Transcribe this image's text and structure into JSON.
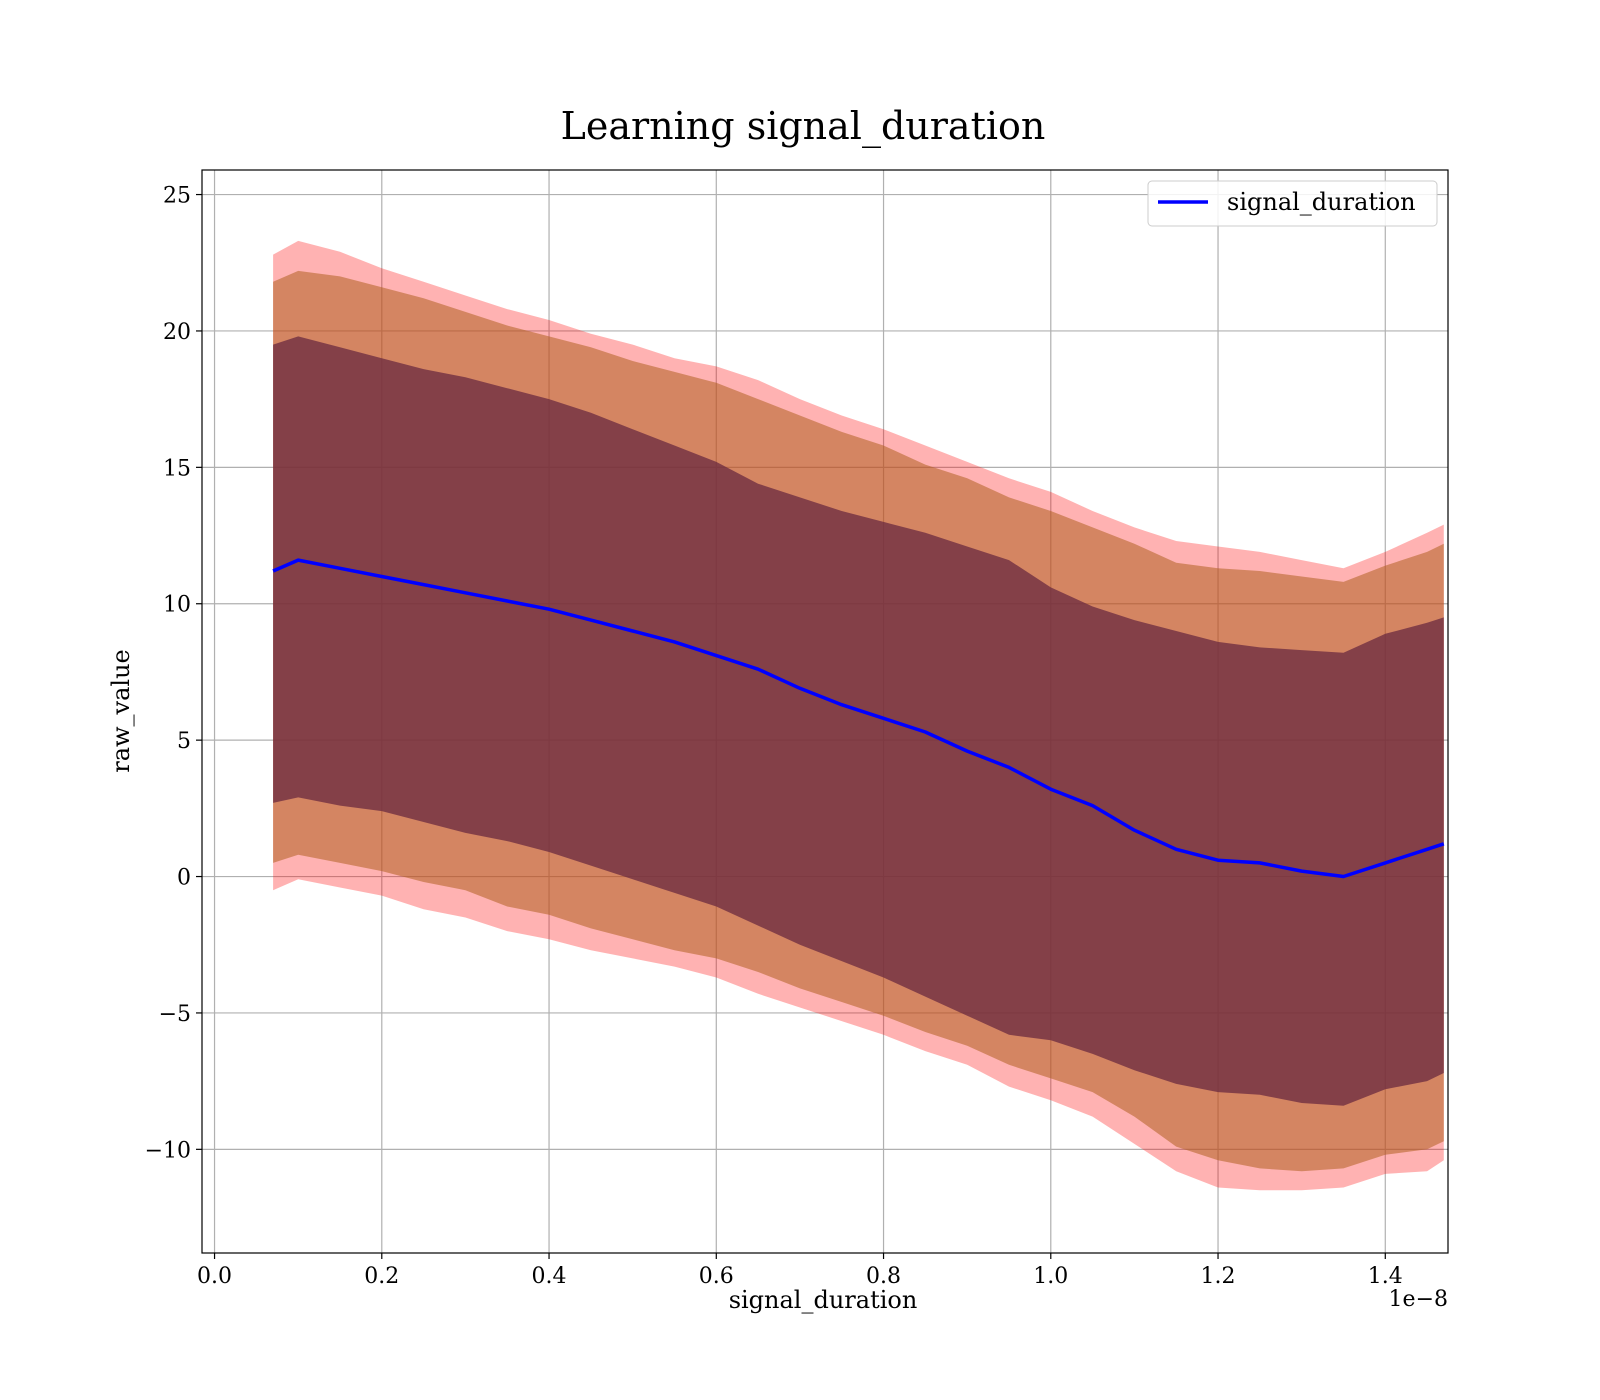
{
  "chart_data": {
    "type": "line",
    "title": "Learning signal_duration",
    "xlabel": "signal_duration",
    "ylabel": "raw_value",
    "x_offset_label": "1e−8",
    "x_scale_exponent": -8,
    "xlim": [
      -0.015,
      1.475
    ],
    "ylim": [
      -13.8,
      25.9
    ],
    "x_ticks": [
      0.0,
      0.2,
      0.4,
      0.6,
      0.8,
      1.0,
      1.2,
      1.4
    ],
    "x_tick_labels": [
      "0.0",
      "0.2",
      "0.4",
      "0.6",
      "0.8",
      "1.0",
      "1.2",
      "1.4"
    ],
    "y_ticks": [
      25,
      20,
      15,
      10,
      5,
      0,
      -5,
      -10
    ],
    "y_tick_labels": [
      "25",
      "20",
      "15",
      "10",
      "5",
      "0",
      "−5",
      "−10"
    ],
    "grid": true,
    "legend_position": "top-right",
    "colors": {
      "line": "#0000ff",
      "band_outer": "#ff0000",
      "band_middle": "#b06020",
      "band_inner": "#6a2a40",
      "grid": "#b0b0b0"
    },
    "x": [
      0.07,
      0.1,
      0.15,
      0.2,
      0.25,
      0.3,
      0.35,
      0.4,
      0.45,
      0.5,
      0.55,
      0.6,
      0.65,
      0.7,
      0.75,
      0.8,
      0.85,
      0.9,
      0.95,
      1.0,
      1.05,
      1.1,
      1.15,
      1.2,
      1.25,
      1.3,
      1.35,
      1.4,
      1.45,
      1.47
    ],
    "series": [
      {
        "name": "signal_duration",
        "values": [
          11.2,
          11.6,
          11.3,
          11.0,
          10.7,
          10.4,
          10.1,
          9.8,
          9.4,
          9.0,
          8.6,
          8.1,
          7.6,
          6.9,
          6.3,
          5.8,
          5.3,
          4.6,
          4.0,
          3.2,
          2.6,
          1.7,
          1.0,
          0.6,
          0.5,
          0.2,
          0.0,
          0.5,
          1.0,
          1.2
        ]
      }
    ],
    "bands": [
      {
        "level": "outer",
        "upper": [
          22.8,
          23.3,
          22.9,
          22.3,
          21.8,
          21.3,
          20.8,
          20.4,
          19.9,
          19.5,
          19.0,
          18.7,
          18.2,
          17.5,
          16.9,
          16.4,
          15.8,
          15.2,
          14.6,
          14.1,
          13.4,
          12.8,
          12.3,
          12.1,
          11.9,
          11.6,
          11.3,
          11.9,
          12.6,
          12.9
        ],
        "lower": [
          -0.5,
          -0.1,
          -0.4,
          -0.7,
          -1.2,
          -1.5,
          -2.0,
          -2.3,
          -2.7,
          -3.0,
          -3.3,
          -3.7,
          -4.3,
          -4.8,
          -5.3,
          -5.8,
          -6.4,
          -6.9,
          -7.7,
          -8.2,
          -8.8,
          -9.8,
          -10.8,
          -11.4,
          -11.5,
          -11.5,
          -11.4,
          -10.9,
          -10.8,
          -10.4
        ]
      },
      {
        "level": "middle",
        "upper": [
          21.8,
          22.2,
          22.0,
          21.6,
          21.2,
          20.7,
          20.2,
          19.8,
          19.4,
          18.9,
          18.5,
          18.1,
          17.5,
          16.9,
          16.3,
          15.8,
          15.1,
          14.6,
          13.9,
          13.4,
          12.8,
          12.2,
          11.5,
          11.3,
          11.2,
          11.0,
          10.8,
          11.4,
          11.9,
          12.2
        ],
        "lower": [
          0.5,
          0.8,
          0.5,
          0.2,
          -0.2,
          -0.5,
          -1.1,
          -1.4,
          -1.9,
          -2.3,
          -2.7,
          -3.0,
          -3.5,
          -4.1,
          -4.6,
          -5.1,
          -5.7,
          -6.2,
          -6.9,
          -7.4,
          -7.9,
          -8.8,
          -9.9,
          -10.4,
          -10.7,
          -10.8,
          -10.7,
          -10.2,
          -10.0,
          -9.7
        ]
      },
      {
        "level": "inner",
        "upper": [
          19.5,
          19.8,
          19.4,
          19.0,
          18.6,
          18.3,
          17.9,
          17.5,
          17.0,
          16.4,
          15.8,
          15.2,
          14.4,
          13.9,
          13.4,
          13.0,
          12.6,
          12.1,
          11.6,
          10.6,
          9.9,
          9.4,
          9.0,
          8.6,
          8.4,
          8.3,
          8.2,
          8.9,
          9.3,
          9.5
        ],
        "lower": [
          2.7,
          2.9,
          2.6,
          2.4,
          2.0,
          1.6,
          1.3,
          0.9,
          0.4,
          -0.1,
          -0.6,
          -1.1,
          -1.8,
          -2.5,
          -3.1,
          -3.7,
          -4.4,
          -5.1,
          -5.8,
          -6.0,
          -6.5,
          -7.1,
          -7.6,
          -7.9,
          -8.0,
          -8.3,
          -8.4,
          -7.8,
          -7.5,
          -7.2
        ]
      }
    ]
  }
}
